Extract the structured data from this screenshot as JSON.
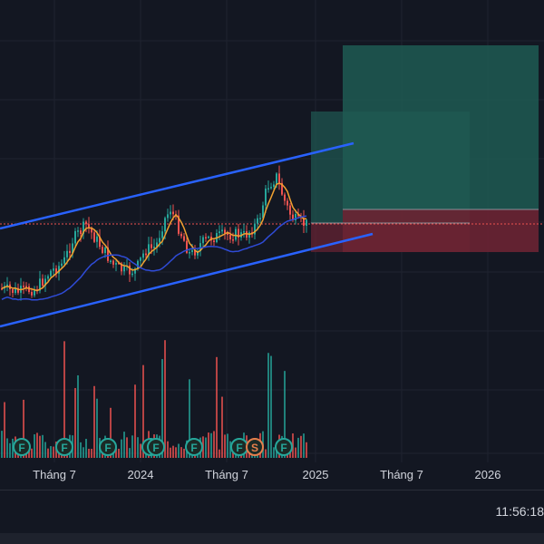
{
  "colors": {
    "background": "#131722",
    "grid": "#1f2330",
    "up": "#26a69a",
    "down": "#ef5350",
    "channel": "#2962ff",
    "ma_fast": "#f0a030",
    "ma_slow": "#2f4bd6",
    "price_line": "#ef5350",
    "profit_zone": "#1f5a52",
    "loss_zone": "#6b2333",
    "event_f": "#26a69a",
    "event_s": "#e57f4c"
  },
  "x_axis": {
    "labels": [
      "Tháng 7",
      "2024",
      "Tháng 7",
      "2025",
      "Tháng 7",
      "2026"
    ]
  },
  "events": [
    {
      "label": "F"
    },
    {
      "label": "F"
    },
    {
      "label": "F"
    },
    {
      "label": "F"
    },
    {
      "label": "F"
    },
    {
      "label": "F"
    },
    {
      "label": "F"
    },
    {
      "label": "S"
    },
    {
      "label": "F"
    }
  ],
  "status": {
    "clock": "11:56:18"
  },
  "chart_data": {
    "type": "candlestick",
    "title": "",
    "x_axis_labels": [
      "Tháng 7",
      "2024",
      "Tháng 7",
      "2025",
      "Tháng 7",
      "2026"
    ],
    "indicators": [
      "moving-average-fast",
      "moving-average-slow",
      "parallel-channel",
      "long-position-tool",
      "volume"
    ],
    "grid": true
  }
}
